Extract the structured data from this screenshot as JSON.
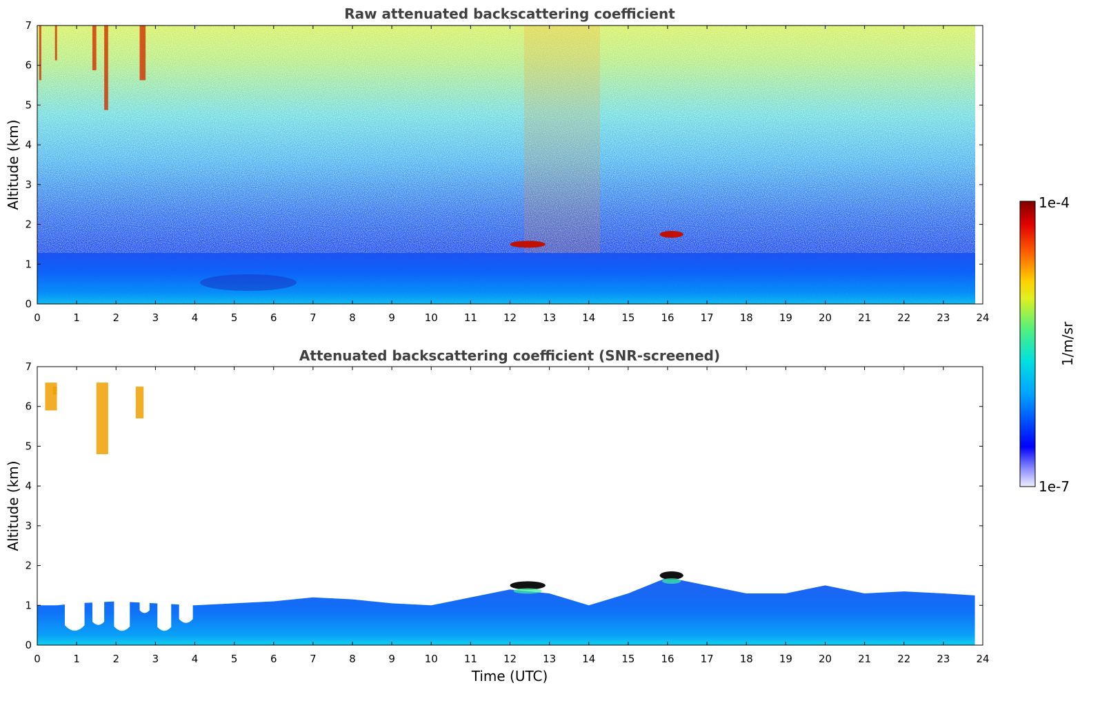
{
  "chart_data": [
    {
      "type": "heatmap",
      "title": "Raw attenuated backscattering coefficient",
      "xlabel": "",
      "ylabel": "Altitude (km)",
      "xlim": [
        0,
        24
      ],
      "ylim": [
        0,
        7
      ],
      "xticks": [
        0,
        1,
        2,
        3,
        4,
        5,
        6,
        7,
        8,
        9,
        10,
        11,
        12,
        13,
        14,
        15,
        16,
        17,
        18,
        19,
        20,
        21,
        22,
        23,
        24
      ],
      "yticks": [
        0,
        1,
        2,
        3,
        4,
        5,
        6,
        7
      ],
      "data_end_time": 23.8,
      "features": [
        {
          "name": "boundary-layer aerosol",
          "time_range": [
            0,
            23.8
          ],
          "top_altitude_km": 1.3
        },
        {
          "name": "cloud layer",
          "time_range": [
            12.0,
            12.9
          ],
          "altitude_km": 1.5
        },
        {
          "name": "cloud layer",
          "time_range": [
            15.8,
            16.4
          ],
          "altitude_km": 1.75
        },
        {
          "name": "high cirrus",
          "time_range": [
            0,
            2.8
          ],
          "altitude_range_km": [
            4.5,
            7.0
          ]
        },
        {
          "name": "enhanced signal column",
          "time_range": [
            12.4,
            14.2
          ],
          "altitude_range_km": [
            2.0,
            7.0
          ]
        }
      ]
    },
    {
      "type": "heatmap",
      "title": "Attenuated backscattering coefficient (SNR-screened)",
      "xlabel": "Time (UTC)",
      "ylabel": "Altitude (km)",
      "xlim": [
        0,
        24
      ],
      "ylim": [
        0,
        7
      ],
      "xticks": [
        0,
        1,
        2,
        3,
        4,
        5,
        6,
        7,
        8,
        9,
        10,
        11,
        12,
        13,
        14,
        15,
        16,
        17,
        18,
        19,
        20,
        21,
        22,
        23,
        24
      ],
      "yticks": [
        0,
        1,
        2,
        3,
        4,
        5,
        6,
        7
      ],
      "boundary_layer_top_km": [
        [
          0,
          1.0
        ],
        [
          0.5,
          1.0
        ],
        [
          1,
          1.05
        ],
        [
          2,
          1.1
        ],
        [
          3,
          1.05
        ],
        [
          4,
          1.0
        ],
        [
          5,
          1.05
        ],
        [
          6,
          1.1
        ],
        [
          7,
          1.2
        ],
        [
          8,
          1.15
        ],
        [
          9,
          1.05
        ],
        [
          10,
          1.0
        ],
        [
          11,
          1.2
        ],
        [
          12,
          1.4
        ],
        [
          13,
          1.3
        ],
        [
          14,
          1.0
        ],
        [
          15,
          1.3
        ],
        [
          16,
          1.7
        ],
        [
          17,
          1.5
        ],
        [
          18,
          1.3
        ],
        [
          19,
          1.3
        ],
        [
          20,
          1.5
        ],
        [
          21,
          1.3
        ],
        [
          22,
          1.35
        ],
        [
          23,
          1.3
        ],
        [
          23.8,
          1.25
        ]
      ],
      "gaps": [
        {
          "time_range": [
            0.7,
            1.2
          ],
          "bottom_km": 0.35
        },
        {
          "time_range": [
            1.4,
            1.7
          ],
          "bottom_km": 0.5
        },
        {
          "time_range": [
            1.95,
            2.35
          ],
          "bottom_km": 0.35
        },
        {
          "time_range": [
            2.6,
            2.85
          ],
          "bottom_km": 0.8
        },
        {
          "time_range": [
            3.05,
            3.4
          ],
          "bottom_km": 0.35
        },
        {
          "time_range": [
            3.6,
            3.95
          ],
          "bottom_km": 0.55
        }
      ]
    }
  ],
  "colorbar": {
    "label": "1/m/sr",
    "max_label": "1e-4",
    "min_label": "1e-7",
    "colormap": [
      "#ffffff",
      "#c8c8ff",
      "#6060ff",
      "#0000ff",
      "#0050ff",
      "#00a0ff",
      "#00e0e8",
      "#40f0a0",
      "#b0f050",
      "#ffff00",
      "#ffc000",
      "#ff6000",
      "#ff0000",
      "#c00000",
      "#800000"
    ]
  }
}
